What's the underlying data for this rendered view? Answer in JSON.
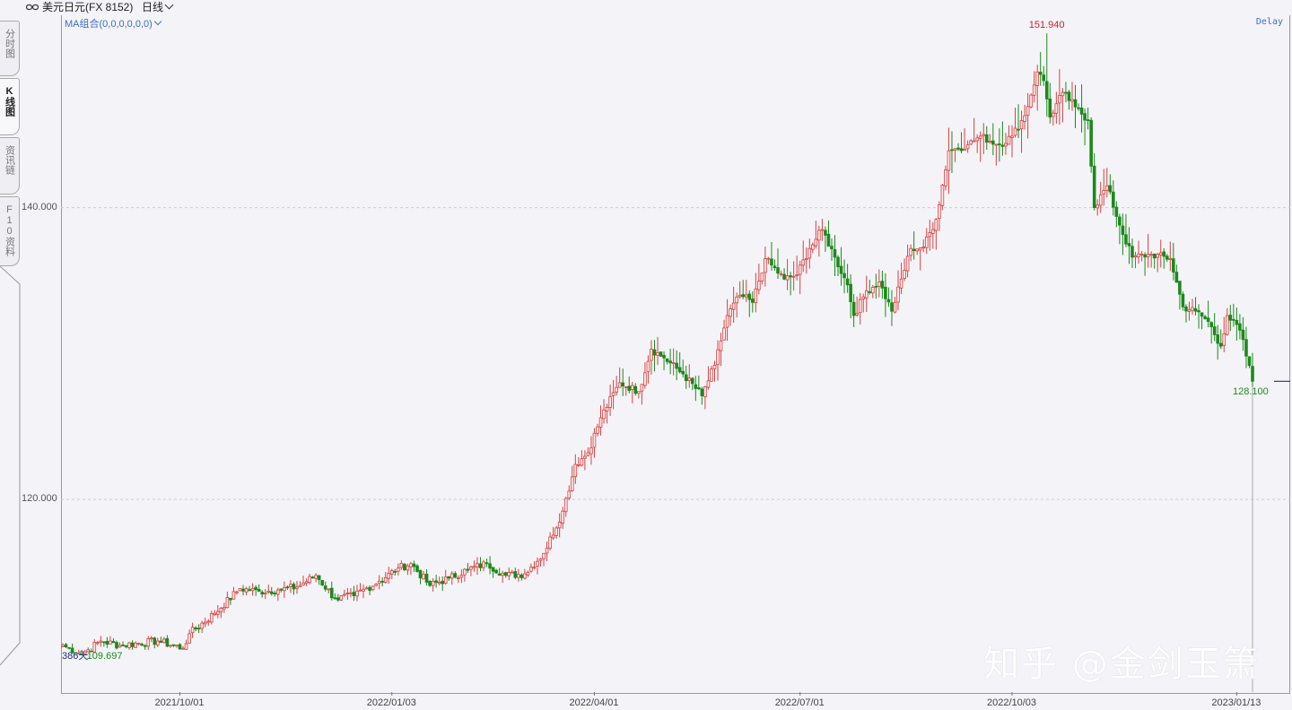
{
  "header": {
    "title": "美元日元(FX 8152)",
    "period": "日线"
  },
  "tabs": [
    {
      "label": "分时图",
      "active": false
    },
    {
      "label": "K线图",
      "active": true
    },
    {
      "label": "资讯链",
      "active": false
    },
    {
      "label": "F10资料",
      "active": false
    }
  ],
  "indicator": {
    "label": "MA组合(0,0,0,0,0,0)"
  },
  "status": {
    "delay": "Delay"
  },
  "annotations": {
    "high": "151.940",
    "low": "109.697",
    "last": "128.100",
    "days": "386天"
  },
  "watermark": "知乎 @金剑玉箫",
  "colors": {
    "up": "#d84040",
    "down": "#1a8a1a",
    "grid": "#cccccc"
  },
  "chart_data": {
    "type": "candlestick",
    "ylim": [
      106.8,
      153.0
    ],
    "yticks": [
      {
        "value": 120,
        "label": "120.000"
      },
      {
        "value": 140,
        "label": "140.000"
      }
    ],
    "xticks": [
      {
        "label": "2021/10/01",
        "index": 37
      },
      {
        "label": "2022/01/03",
        "index": 104
      },
      {
        "label": "2022/04/01",
        "index": 168
      },
      {
        "label": "2022/07/01",
        "index": 233
      },
      {
        "label": "2022/10/03",
        "index": 300
      },
      {
        "label": "2023/01/13",
        "index": 371
      }
    ],
    "close_anchors": [
      [
        0,
        110.0
      ],
      [
        6,
        109.4
      ],
      [
        8,
        109.7
      ],
      [
        12,
        110.3
      ],
      [
        18,
        110.0
      ],
      [
        30,
        110.3
      ],
      [
        38,
        109.8
      ],
      [
        40,
        110.8
      ],
      [
        48,
        112.2
      ],
      [
        56,
        113.9
      ],
      [
        62,
        113.7
      ],
      [
        68,
        113.8
      ],
      [
        74,
        114.0
      ],
      [
        80,
        114.8
      ],
      [
        86,
        113.2
      ],
      [
        92,
        113.4
      ],
      [
        100,
        114.4
      ],
      [
        106,
        115.3
      ],
      [
        110,
        115.6
      ],
      [
        116,
        114.1
      ],
      [
        122,
        114.6
      ],
      [
        128,
        115.2
      ],
      [
        134,
        115.6
      ],
      [
        140,
        114.8
      ],
      [
        146,
        114.9
      ],
      [
        152,
        116.3
      ],
      [
        158,
        119.2
      ],
      [
        162,
        122.4
      ],
      [
        166,
        123.2
      ],
      [
        170,
        125.6
      ],
      [
        176,
        128.0
      ],
      [
        182,
        127.4
      ],
      [
        186,
        130.3
      ],
      [
        190,
        129.7
      ],
      [
        196,
        128.6
      ],
      [
        202,
        127.1
      ],
      [
        206,
        129.2
      ],
      [
        210,
        132.6
      ],
      [
        214,
        134.0
      ],
      [
        218,
        133.5
      ],
      [
        222,
        136.5
      ],
      [
        228,
        135.1
      ],
      [
        232,
        135.4
      ],
      [
        236,
        137.2
      ],
      [
        240,
        138.5
      ],
      [
        244,
        136.6
      ],
      [
        248,
        134.7
      ],
      [
        250,
        132.6
      ],
      [
        254,
        134.3
      ],
      [
        258,
        134.9
      ],
      [
        262,
        132.9
      ],
      [
        268,
        137.2
      ],
      [
        272,
        137.3
      ],
      [
        276,
        139.2
      ],
      [
        280,
        143.9
      ],
      [
        286,
        144.3
      ],
      [
        290,
        144.9
      ],
      [
        296,
        144.3
      ],
      [
        300,
        144.9
      ],
      [
        304,
        146.3
      ],
      [
        308,
        149.3
      ],
      [
        310,
        148.7
      ],
      [
        312,
        146.2
      ],
      [
        316,
        147.9
      ],
      [
        320,
        146.9
      ],
      [
        324,
        146.0
      ],
      [
        326,
        140.0
      ],
      [
        330,
        141.5
      ],
      [
        334,
        138.8
      ],
      [
        338,
        136.6
      ],
      [
        344,
        136.8
      ],
      [
        350,
        136.5
      ],
      [
        354,
        133.2
      ],
      [
        358,
        132.9
      ],
      [
        362,
        132.2
      ],
      [
        366,
        130.5
      ],
      [
        368,
        132.6
      ],
      [
        372,
        131.6
      ],
      [
        376,
        128.1
      ]
    ],
    "n_bars": 377,
    "high": 151.94,
    "high_index": 311,
    "low": 109.697,
    "low_index": 7,
    "last": 128.1
  }
}
